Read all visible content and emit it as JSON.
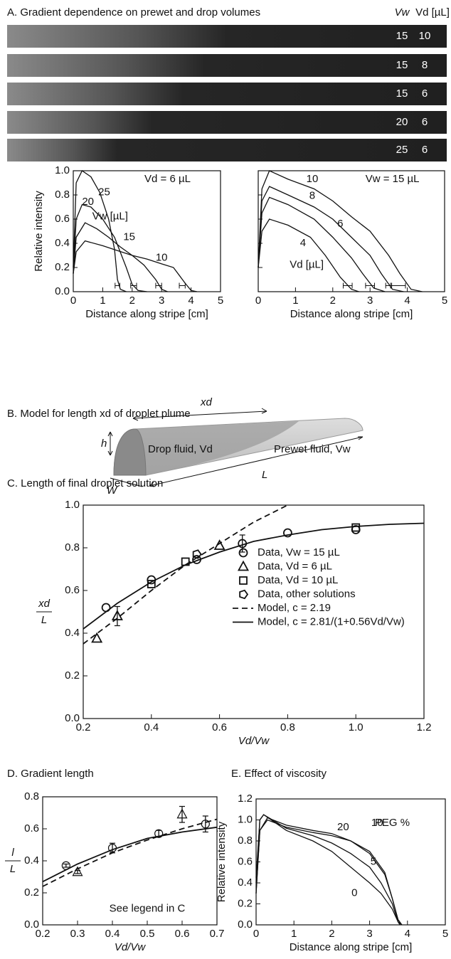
{
  "panel_a": {
    "title": "A. Gradient dependence on prewet and drop volumes",
    "column_headers": [
      "Vw",
      "Vd [µL]"
    ],
    "stripes": [
      {
        "vw": 15,
        "vd": 10
      },
      {
        "vw": 15,
        "vd": 8
      },
      {
        "vw": 15,
        "vd": 6
      },
      {
        "vw": 20,
        "vd": 6
      },
      {
        "vw": 25,
        "vd": 6
      }
    ]
  },
  "panel_b": {
    "title": "B. Model for length xd of droplet plume",
    "xd": "xd",
    "h": "h",
    "W": "W",
    "L": "L",
    "drop": "Drop fluid, Vd",
    "prewet": "Prewet fluid, Vw"
  },
  "chart_data": [
    {
      "type": "line",
      "xlabel": "Distance along stripe [cm]",
      "ylabel": "Relative intensity",
      "xlim": [
        0,
        5
      ],
      "ylim": [
        0,
        1
      ],
      "xticks": [
        0,
        1,
        2,
        3,
        4,
        5
      ],
      "yticks": [
        {
          "value": 0,
          "label": "0.0"
        },
        0.2,
        0.4,
        0.6,
        0.8,
        {
          "value": 1,
          "label": "1.0"
        }
      ],
      "annotations": [
        "Vd = 6 µL",
        "Vw [µL]"
      ],
      "series": [
        {
          "name": "25",
          "color": "#111",
          "x": [
            0,
            0.1,
            0.3,
            0.6,
            0.9,
            1.2,
            1.4,
            1.5,
            1.6,
            1.8
          ],
          "values": [
            0.2,
            0.9,
            1.0,
            0.95,
            0.82,
            0.6,
            0.35,
            0.1,
            0.02,
            0
          ]
        },
        {
          "name": "20",
          "color": "#111",
          "x": [
            0,
            0.1,
            0.3,
            0.6,
            1.0,
            1.4,
            1.8,
            2.0,
            2.2,
            2.5
          ],
          "values": [
            0.15,
            0.6,
            0.72,
            0.7,
            0.6,
            0.45,
            0.2,
            0.06,
            0.01,
            0
          ]
        },
        {
          "name": "15",
          "color": "#111",
          "x": [
            0,
            0.1,
            0.4,
            0.8,
            1.2,
            1.6,
            2.0,
            2.4,
            2.8,
            3.0,
            3.2
          ],
          "values": [
            0.15,
            0.45,
            0.57,
            0.52,
            0.45,
            0.37,
            0.3,
            0.22,
            0.1,
            0.02,
            0
          ]
        },
        {
          "name": "10",
          "color": "#111",
          "x": [
            0,
            0.1,
            0.4,
            1,
            1.5,
            2,
            2.5,
            3,
            3.4,
            3.8,
            4.0,
            4.2
          ],
          "values": [
            0.15,
            0.33,
            0.42,
            0.38,
            0.34,
            0.3,
            0.27,
            0.23,
            0.2,
            0.07,
            0.01,
            0
          ]
        }
      ],
      "ranges": {
        "x": [
          1.5,
          2.05,
          2.9,
          3.7
        ],
        "xerr": [
          0.08,
          0.1,
          0.1,
          0.1
        ]
      }
    },
    {
      "type": "line",
      "xlabel": "Distance along stripe [cm]",
      "xlim": [
        0,
        5
      ],
      "ylim": [
        0,
        1
      ],
      "xticks": [
        0,
        1,
        2,
        3,
        4,
        5
      ],
      "annotations": [
        "Vw = 15 µL",
        "Vd [µL]"
      ],
      "series": [
        {
          "name": "10",
          "color": "#111",
          "x": [
            0,
            0.1,
            0.3,
            0.8,
            1.5,
            2,
            2.5,
            3,
            3.5,
            3.8,
            4.1,
            4.4
          ],
          "values": [
            0.2,
            0.85,
            1.0,
            0.93,
            0.85,
            0.75,
            0.62,
            0.5,
            0.3,
            0.15,
            0.02,
            0
          ]
        },
        {
          "name": "8",
          "color": "#111",
          "x": [
            0,
            0.1,
            0.3,
            0.8,
            1.5,
            2,
            2.5,
            3,
            3.3,
            3.6,
            3.9
          ],
          "values": [
            0.2,
            0.75,
            0.87,
            0.8,
            0.7,
            0.6,
            0.45,
            0.3,
            0.15,
            0.02,
            0
          ]
        },
        {
          "name": "6",
          "color": "#111",
          "x": [
            0,
            0.1,
            0.3,
            0.8,
            1.5,
            2,
            2.5,
            2.8,
            3.1,
            3.4
          ],
          "values": [
            0.2,
            0.65,
            0.78,
            0.72,
            0.6,
            0.45,
            0.28,
            0.15,
            0.03,
            0
          ]
        },
        {
          "name": "4",
          "color": "#111",
          "x": [
            0,
            0.1,
            0.3,
            0.8,
            1.4,
            1.8,
            2.2,
            2.5,
            2.7
          ],
          "values": [
            0.2,
            0.5,
            0.6,
            0.55,
            0.45,
            0.3,
            0.12,
            0.02,
            0
          ]
        }
      ],
      "ranges": {
        "x": [
          2.4,
          3.0,
          3.5,
          3.75
        ],
        "xerr": [
          0.12,
          0.12,
          0.08,
          0.2
        ]
      }
    },
    {
      "type": "scatter",
      "title": "C. Length of final droplet solution",
      "xlabel": "Vd/Vw",
      "ylabel": {
        "numerator": "xd",
        "denominator": "L"
      },
      "xlim": [
        0.2,
        1.2
      ],
      "ylim": [
        0,
        1
      ],
      "xticks": [
        0.2,
        0.4,
        0.6,
        0.8,
        {
          "value": 1,
          "label": "1.0"
        },
        1.2
      ],
      "yticks": [
        {
          "value": 0,
          "label": "0.0"
        },
        0.2,
        0.4,
        0.6,
        0.8,
        {
          "value": 1,
          "label": "1.0"
        }
      ],
      "legend": true,
      "series": [
        {
          "name": "Data, Vw = 15 µL",
          "marker": "circle",
          "color": "#111",
          "x": [
            0.267,
            0.4,
            0.533,
            0.667,
            0.8,
            1.0
          ],
          "values": [
            0.52,
            0.65,
            0.745,
            0.82,
            0.87,
            0.885
          ],
          "errors": [
            0,
            0,
            0,
            0.04,
            0,
            0
          ]
        },
        {
          "name": "Data, Vd = 6 µL",
          "marker": "triangle",
          "color": "#111",
          "x": [
            0.24,
            0.3,
            0.6
          ],
          "values": [
            0.375,
            0.48,
            0.81
          ],
          "errors": [
            0,
            0.045,
            0
          ]
        },
        {
          "name": "Data, Vd = 10 µL",
          "marker": "square",
          "color": "#111",
          "x": [
            0.4,
            0.5,
            1.0
          ],
          "values": [
            0.63,
            0.735,
            0.895
          ]
        },
        {
          "name": "Data, other solutions",
          "marker": "pentagon",
          "color": "#111",
          "x": [
            0.533
          ],
          "values": [
            0.77
          ]
        },
        {
          "name": "Model, c = 2.19",
          "line": "dashed",
          "color": "#111",
          "x": [
            0.2,
            0.3,
            0.4,
            0.5,
            0.6,
            0.7,
            0.8
          ],
          "values": [
            0.35,
            0.47,
            0.6,
            0.72,
            0.82,
            0.92,
            1.0
          ]
        },
        {
          "name": "Model, c = 2.81/(1+0.56Vd/Vw)",
          "line": "solid",
          "color": "#111",
          "x": [
            0.2,
            0.3,
            0.4,
            0.5,
            0.6,
            0.7,
            0.8,
            0.9,
            1.0,
            1.1,
            1.2
          ],
          "values": [
            0.42,
            0.54,
            0.64,
            0.72,
            0.78,
            0.83,
            0.86,
            0.885,
            0.9,
            0.91,
            0.915
          ]
        }
      ]
    },
    {
      "type": "scatter",
      "title": "D. Gradient length",
      "xlabel": "Vd/Vw",
      "ylabel": {
        "numerator": "l",
        "denominator": "L"
      },
      "xlim": [
        0.2,
        0.7
      ],
      "ylim": [
        0,
        0.8
      ],
      "xticks": [
        0.2,
        0.3,
        0.4,
        0.5,
        0.6,
        0.7
      ],
      "yticks": [
        {
          "value": 0,
          "label": "0.0"
        },
        0.2,
        0.4,
        0.6,
        0.8
      ],
      "annotations": [
        "See legend in C"
      ],
      "series": [
        {
          "name": "Data, Vw = 15 µL",
          "marker": "circle",
          "color": "#111",
          "x": [
            0.267,
            0.4,
            0.533,
            0.667
          ],
          "values": [
            0.37,
            0.48,
            0.57,
            0.63
          ],
          "errors": [
            0.01,
            0.03,
            0.02,
            0.05
          ]
        },
        {
          "name": "Data, Vd = 6 µL",
          "marker": "triangle",
          "color": "#111",
          "x": [
            0.3,
            0.6
          ],
          "values": [
            0.33,
            0.69
          ],
          "errors": [
            0.01,
            0.05
          ]
        },
        {
          "name": "Model, c = 2.19",
          "line": "dashed",
          "color": "#111",
          "x": [
            0.2,
            0.3,
            0.4,
            0.5,
            0.6,
            0.7
          ],
          "values": [
            0.24,
            0.35,
            0.45,
            0.53,
            0.6,
            0.66
          ]
        },
        {
          "name": "Model, c = 2.81/(1+0.56Vd/Vw)",
          "line": "solid",
          "color": "#111",
          "x": [
            0.2,
            0.3,
            0.4,
            0.5,
            0.6,
            0.7
          ],
          "values": [
            0.27,
            0.38,
            0.47,
            0.54,
            0.58,
            0.61
          ]
        }
      ]
    },
    {
      "type": "line",
      "title": "E. Effect of viscosity",
      "xlabel": "Distance along stripe [cm]",
      "ylabel": "Relative intensity",
      "xlim": [
        0,
        5
      ],
      "ylim": [
        0,
        1.2
      ],
      "xticks": [
        0,
        1,
        2,
        3,
        4,
        5
      ],
      "yticks": [
        {
          "value": 0,
          "label": "0.0"
        },
        0.2,
        0.4,
        0.6,
        0.8,
        {
          "value": 1,
          "label": "1.0"
        },
        1.2
      ],
      "annotations": [
        "PEG %"
      ],
      "series": [
        {
          "name": "20",
          "color": "#111",
          "x": [
            0,
            0.1,
            0.3,
            0.8,
            1.5,
            2,
            2.5,
            3,
            3.4,
            3.6,
            3.75,
            3.85
          ],
          "values": [
            0.3,
            0.9,
            1.02,
            0.95,
            0.9,
            0.87,
            0.8,
            0.7,
            0.5,
            0.25,
            0.05,
            0
          ]
        },
        {
          "name": "10",
          "color": "#111",
          "x": [
            0,
            0.1,
            0.3,
            0.8,
            1.5,
            2,
            2.5,
            3,
            3.4,
            3.6,
            3.75,
            3.85
          ],
          "values": [
            0.3,
            0.9,
            1.0,
            0.93,
            0.88,
            0.85,
            0.8,
            0.68,
            0.48,
            0.25,
            0.05,
            0
          ]
        },
        {
          "name": "5",
          "color": "#111",
          "x": [
            0,
            0.1,
            0.2,
            0.8,
            1.5,
            2,
            2.5,
            3,
            3.3,
            3.6,
            3.75,
            3.85
          ],
          "values": [
            0.4,
            1.0,
            1.05,
            0.92,
            0.85,
            0.78,
            0.68,
            0.55,
            0.4,
            0.2,
            0.03,
            0
          ]
        },
        {
          "name": "0",
          "color": "#111",
          "x": [
            0,
            0.1,
            0.2,
            0.8,
            1.5,
            2,
            2.5,
            3,
            3.3,
            3.6,
            3.75,
            3.8
          ],
          "values": [
            0.45,
            1.0,
            1.05,
            0.9,
            0.8,
            0.7,
            0.55,
            0.4,
            0.3,
            0.15,
            0.03,
            0
          ]
        }
      ]
    }
  ]
}
